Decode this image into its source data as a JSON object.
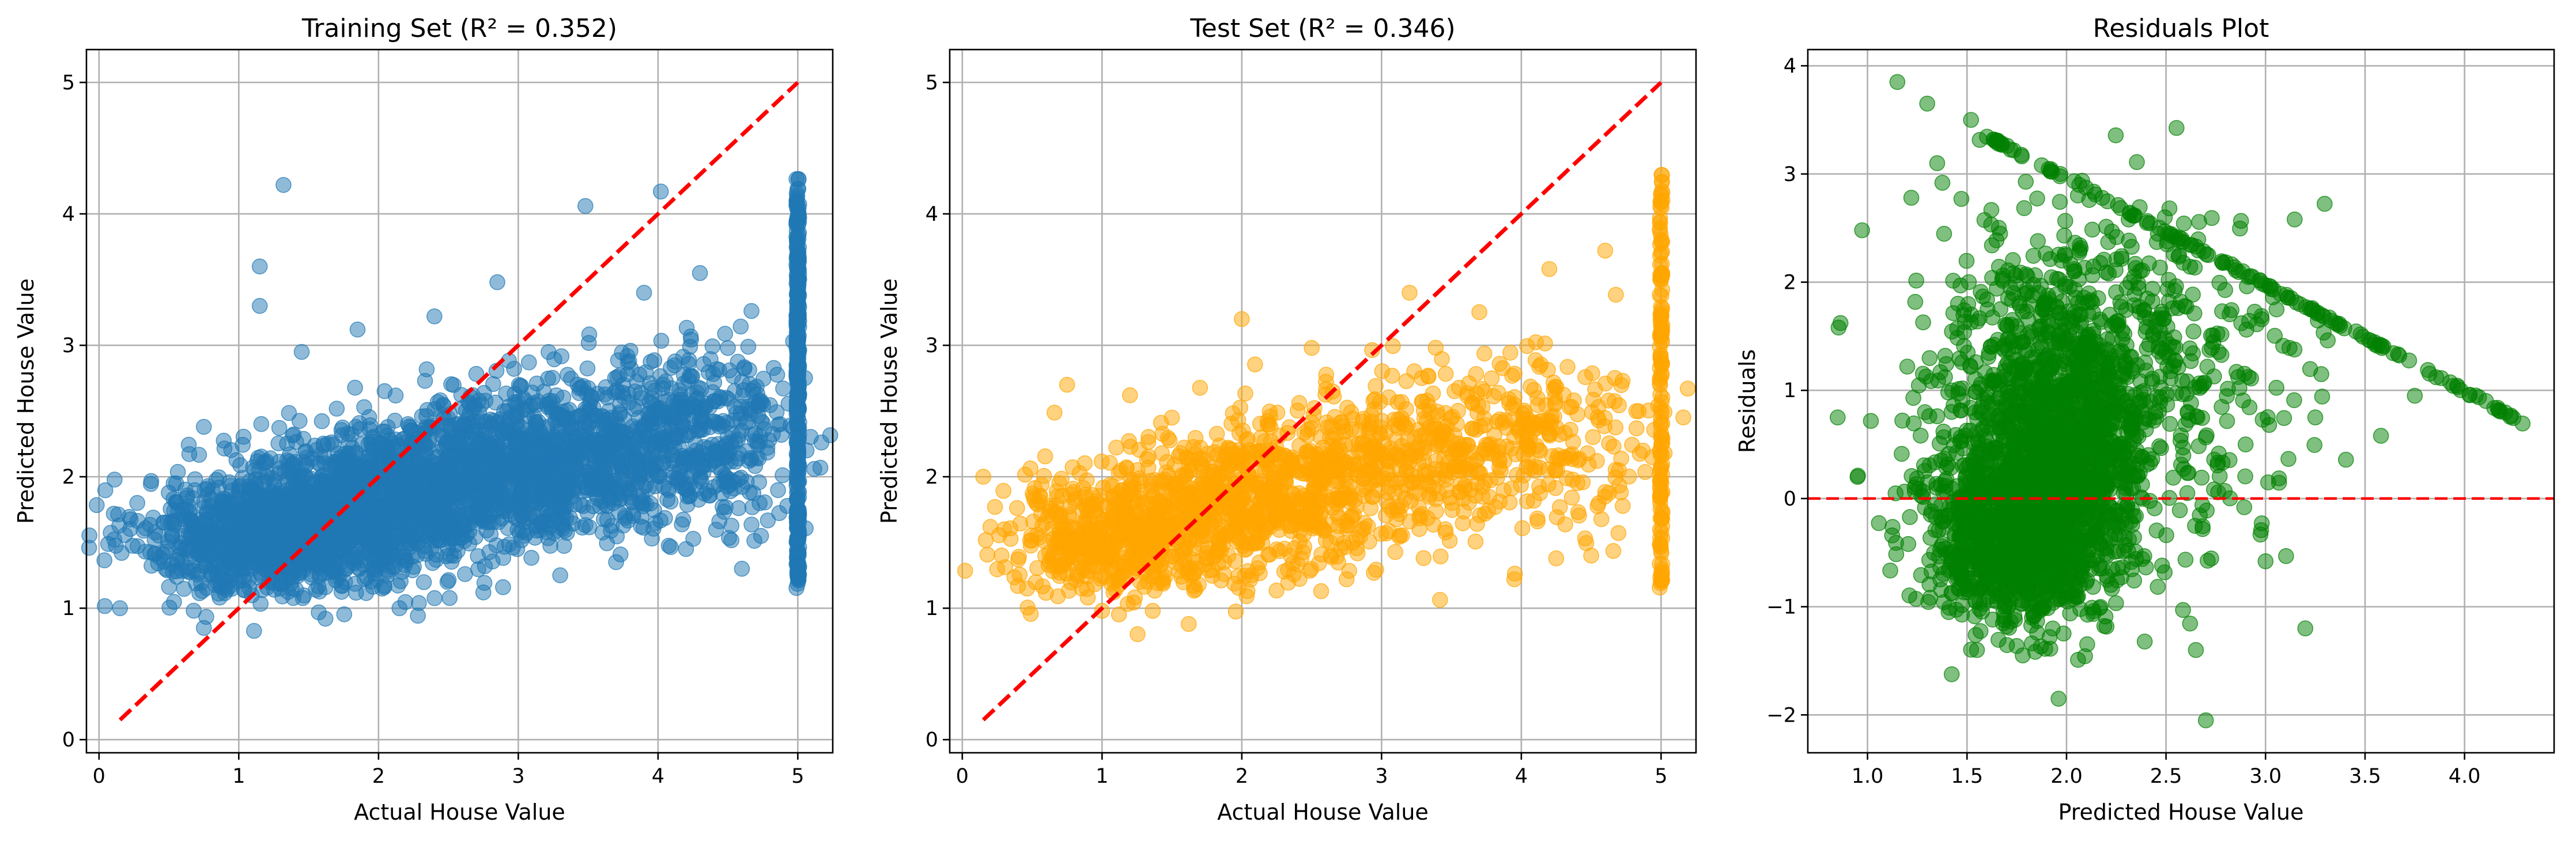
{
  "chart_data": [
    {
      "type": "scatter",
      "title": "Training Set (R² = 0.352)",
      "xlabel": "Actual House Value",
      "ylabel": "Predicted House Value",
      "xlim": [
        -0.09,
        5.25
      ],
      "ylim": [
        -0.1,
        5.25
      ],
      "xticks": [
        0,
        1,
        2,
        3,
        4,
        5
      ],
      "yticks": [
        0,
        1,
        2,
        3,
        4,
        5
      ],
      "grid": true,
      "color": "#1f77b4",
      "marker_opacity": 0.5,
      "reference_line": {
        "x": [
          0.15,
          5.0
        ],
        "y": [
          0.15,
          5.0
        ],
        "color": "#ff0000",
        "style": "dashed"
      },
      "cloud": [
        {
          "cx": 1.2,
          "cy": 1.55,
          "sx": 0.45,
          "sy": 0.22,
          "n": 900
        },
        {
          "cx": 2.0,
          "cy": 1.8,
          "sx": 0.5,
          "sy": 0.28,
          "n": 1100
        },
        {
          "cx": 3.0,
          "cy": 2.1,
          "sx": 0.5,
          "sy": 0.28,
          "n": 900
        },
        {
          "cx": 4.1,
          "cy": 2.3,
          "sx": 0.45,
          "sy": 0.32,
          "n": 600
        }
      ],
      "capped": {
        "x": 5.0,
        "ymin": 1.15,
        "ymax": 4.3,
        "n": 350
      },
      "outliers": [
        {
          "x": 1.32,
          "y": 4.22
        },
        {
          "x": 1.15,
          "y": 3.6
        },
        {
          "x": 1.15,
          "y": 3.3
        },
        {
          "x": 3.48,
          "y": 4.06
        },
        {
          "x": 4.02,
          "y": 4.17
        },
        {
          "x": 2.85,
          "y": 3.48
        },
        {
          "x": 1.85,
          "y": 3.12
        },
        {
          "x": 2.4,
          "y": 3.22
        },
        {
          "x": 0.75,
          "y": 2.38
        },
        {
          "x": 4.3,
          "y": 3.55
        },
        {
          "x": 3.9,
          "y": 3.4
        },
        {
          "x": 1.45,
          "y": 2.95
        },
        {
          "x": 2.75,
          "y": 1.12
        },
        {
          "x": 3.7,
          "y": 1.35
        },
        {
          "x": 4.6,
          "y": 1.3
        },
        {
          "x": 1.62,
          "y": 0.92
        },
        {
          "x": 0.75,
          "y": 0.85
        },
        {
          "x": 2.15,
          "y": 1.0
        },
        {
          "x": 0.15,
          "y": 1.0
        },
        {
          "x": 4.2,
          "y": 1.45
        },
        {
          "x": 3.3,
          "y": 1.25
        }
      ]
    },
    {
      "type": "scatter",
      "title": "Test Set (R² = 0.346)",
      "xlabel": "Actual House Value",
      "ylabel": "Predicted House Value",
      "xlim": [
        -0.09,
        5.25
      ],
      "ylim": [
        -0.1,
        5.25
      ],
      "xticks": [
        0,
        1,
        2,
        3,
        4,
        5
      ],
      "yticks": [
        0,
        1,
        2,
        3,
        4,
        5
      ],
      "grid": true,
      "color": "#ffa500",
      "marker_opacity": 0.5,
      "reference_line": {
        "x": [
          0.15,
          5.0
        ],
        "y": [
          0.15,
          5.0
        ],
        "color": "#ff0000",
        "style": "dashed"
      },
      "cloud": [
        {
          "cx": 1.1,
          "cy": 1.55,
          "sx": 0.4,
          "sy": 0.22,
          "n": 500
        },
        {
          "cx": 2.0,
          "cy": 1.8,
          "sx": 0.45,
          "sy": 0.28,
          "n": 550
        },
        {
          "cx": 3.0,
          "cy": 2.1,
          "sx": 0.48,
          "sy": 0.3,
          "n": 420
        },
        {
          "cx": 4.1,
          "cy": 2.3,
          "sx": 0.45,
          "sy": 0.35,
          "n": 260
        }
      ],
      "capped": {
        "x": 5.0,
        "ymin": 1.15,
        "ymax": 4.3,
        "n": 150
      },
      "outliers": [
        {
          "x": 0.15,
          "y": 2.0
        },
        {
          "x": 0.75,
          "y": 2.7
        },
        {
          "x": 2.0,
          "y": 3.2
        },
        {
          "x": 1.2,
          "y": 2.62
        },
        {
          "x": 4.2,
          "y": 3.58
        },
        {
          "x": 4.6,
          "y": 3.72
        },
        {
          "x": 1.62,
          "y": 0.88
        },
        {
          "x": 1.0,
          "y": 0.98
        },
        {
          "x": 3.2,
          "y": 3.4
        },
        {
          "x": 2.5,
          "y": 2.98
        },
        {
          "x": 3.95,
          "y": 1.22
        },
        {
          "x": 4.5,
          "y": 1.4
        },
        {
          "x": 2.75,
          "y": 1.22
        },
        {
          "x": 0.3,
          "y": 1.6
        }
      ]
    },
    {
      "type": "scatter",
      "title": "Residuals Plot",
      "xlabel": "Predicted House Value",
      "ylabel": "Residuals",
      "xlim": [
        0.7,
        4.45
      ],
      "ylim": [
        -2.35,
        4.15
      ],
      "xticks": [
        1.0,
        1.5,
        2.0,
        2.5,
        3.0,
        3.5,
        4.0
      ],
      "xtick_labels": [
        "1.0",
        "1.5",
        "2.0",
        "2.5",
        "3.0",
        "3.5",
        "4.0"
      ],
      "yticks": [
        -2,
        -1,
        0,
        1,
        2,
        3,
        4
      ],
      "ytick_labels": [
        "−2",
        "−1",
        "0",
        "1",
        "2",
        "3",
        "4"
      ],
      "grid": true,
      "color": "#008000",
      "marker_opacity": 0.5,
      "zero_line": {
        "y": 0,
        "color": "#ff0000",
        "style": "dashed"
      },
      "cloud": [
        {
          "cx": 1.7,
          "cy": -0.35,
          "sx": 0.22,
          "sy": 0.4,
          "n": 900
        },
        {
          "cx": 1.95,
          "cy": 0.2,
          "sx": 0.2,
          "sy": 0.55,
          "n": 800
        },
        {
          "cx": 2.05,
          "cy": 1.0,
          "sx": 0.28,
          "sy": 0.7,
          "n": 500
        },
        {
          "cx": 1.75,
          "cy": 0.8,
          "sx": 0.3,
          "sy": 0.9,
          "n": 300
        },
        {
          "cx": 2.4,
          "cy": 1.2,
          "sx": 0.4,
          "sy": 0.8,
          "n": 300
        }
      ],
      "capped_line": {
        "x0": 1.6,
        "y0": 3.35,
        "x1": 4.3,
        "y1": 0.7,
        "n": 140
      },
      "outliers": [
        {
          "x": 1.15,
          "y": 3.85
        },
        {
          "x": 1.3,
          "y": 3.65
        },
        {
          "x": 1.35,
          "y": 3.1
        },
        {
          "x": 1.52,
          "y": 3.5
        },
        {
          "x": 1.22,
          "y": 2.78
        },
        {
          "x": 0.85,
          "y": 0.75
        },
        {
          "x": 0.95,
          "y": 0.2
        },
        {
          "x": 1.96,
          "y": -1.85
        },
        {
          "x": 2.65,
          "y": -1.4
        },
        {
          "x": 2.7,
          "y": -2.05
        },
        {
          "x": 3.2,
          "y": -1.2
        },
        {
          "x": 3.0,
          "y": -0.58
        },
        {
          "x": 3.58,
          "y": 0.58
        },
        {
          "x": 3.28,
          "y": 1.15
        },
        {
          "x": 3.75,
          "y": 0.95
        },
        {
          "x": 1.55,
          "y": -1.4
        },
        {
          "x": 1.78,
          "y": -1.45
        },
        {
          "x": 2.48,
          "y": -0.62
        },
        {
          "x": 3.25,
          "y": 0.75
        },
        {
          "x": 2.9,
          "y": 0.5
        }
      ]
    }
  ]
}
